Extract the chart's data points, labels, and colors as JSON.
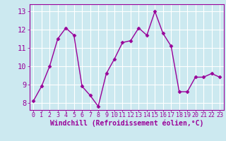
{
  "x": [
    0,
    1,
    2,
    3,
    4,
    5,
    6,
    7,
    8,
    9,
    10,
    11,
    12,
    13,
    14,
    15,
    16,
    17,
    18,
    19,
    20,
    21,
    22,
    23
  ],
  "y": [
    8.1,
    8.9,
    10.0,
    11.5,
    12.1,
    11.7,
    8.9,
    8.4,
    7.8,
    9.6,
    10.4,
    11.3,
    11.4,
    12.1,
    11.7,
    13.0,
    11.8,
    11.1,
    8.6,
    8.6,
    9.4,
    9.4,
    9.6,
    9.4
  ],
  "line_color": "#990099",
  "marker": "D",
  "markersize": 2.5,
  "linewidth": 1.0,
  "xlabel": "Windchill (Refroidissement éolien,°C)",
  "ylabel": "",
  "xlim": [
    -0.5,
    23.5
  ],
  "ylim": [
    7.6,
    13.4
  ],
  "yticks": [
    8,
    9,
    10,
    11,
    12,
    13
  ],
  "xticks": [
    0,
    1,
    2,
    3,
    4,
    5,
    6,
    7,
    8,
    9,
    10,
    11,
    12,
    13,
    14,
    15,
    16,
    17,
    18,
    19,
    20,
    21,
    22,
    23
  ],
  "bg_color": "#cce9f0",
  "grid_color": "#ffffff",
  "tick_color": "#990099",
  "label_color": "#990099",
  "xlabel_fontsize": 7.0,
  "ytick_fontsize": 7.5,
  "xtick_fontsize": 6.0
}
